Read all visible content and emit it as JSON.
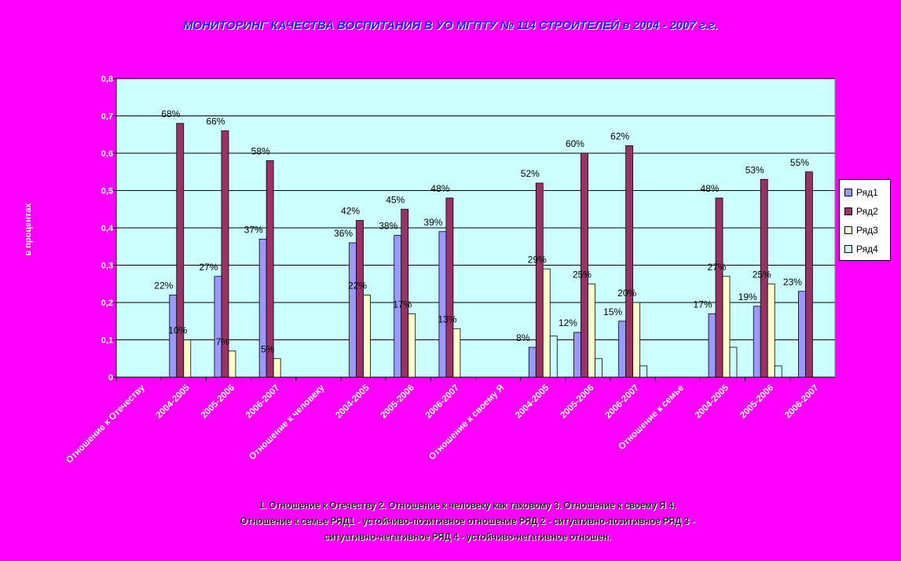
{
  "chart_data": {
    "type": "bar",
    "title": "МОНИТОРИНГ КАЧЕСТВА ВОСПИТАНИЯ В УО МГПТУ № 114 СТРОИТЕЛЕЙ в 2004 - 2007 г.г.",
    "ylabel": "в процентах",
    "ylim": [
      0,
      0.8
    ],
    "yticks": [
      "0",
      "0,1",
      "0,2",
      "0,3",
      "0,4",
      "0,5",
      "0,6",
      "0,7",
      "0,8"
    ],
    "categories": [
      "Отношение к Отечеству",
      "2004-2005",
      "2005-2006",
      "2006-2007",
      "Отношение к человеку",
      "2004-2005",
      "2005-2006",
      "2006-2007",
      "Отношение к своему Я",
      "2004-2005",
      "2005-2006",
      "2006-2007",
      "Отношение к семье",
      "2004-2005",
      "2005-2006",
      "2006-2007"
    ],
    "series": [
      {
        "name": "Ряд1",
        "color": "#9999ff",
        "values": [
          null,
          0.22,
          0.27,
          0.37,
          null,
          0.36,
          0.38,
          0.39,
          null,
          0.08,
          0.12,
          0.15,
          null,
          0.17,
          0.19,
          0.23
        ],
        "labels": [
          "",
          "22%",
          "27%",
          "37%",
          "",
          "36%",
          "38%",
          "39%",
          "",
          "8%",
          "12%",
          "15%",
          "",
          "17%",
          "19%",
          "23%"
        ]
      },
      {
        "name": "Ряд2",
        "color": "#993366",
        "values": [
          null,
          0.68,
          0.66,
          0.58,
          null,
          0.42,
          0.45,
          0.48,
          null,
          0.52,
          0.6,
          0.62,
          null,
          0.48,
          0.53,
          0.55
        ],
        "labels": [
          "",
          "68%",
          "66%",
          "58%",
          "",
          "42%",
          "45%",
          "48%",
          "",
          "52%",
          "60%",
          "62%",
          "",
          "48%",
          "53%",
          "55%"
        ]
      },
      {
        "name": "Ряд3",
        "color": "#ffffcc",
        "values": [
          null,
          0.1,
          0.07,
          0.05,
          null,
          0.22,
          0.17,
          0.13,
          null,
          0.29,
          0.25,
          0.2,
          null,
          0.27,
          0.25,
          null
        ],
        "labels": [
          "",
          "10%",
          "7%",
          "5%",
          "",
          "22%",
          "17%",
          "13%",
          "",
          "29%",
          "25%",
          "20%",
          "",
          "27%",
          "25%",
          ""
        ]
      },
      {
        "name": "Ряд4",
        "color": "#ccffff",
        "values": [
          null,
          null,
          null,
          null,
          null,
          null,
          null,
          null,
          null,
          0.11,
          0.05,
          0.03,
          null,
          0.08,
          0.03,
          null
        ],
        "labels": [
          "",
          "",
          "",
          "",
          "",
          "",
          "",
          "",
          "",
          "",
          "",
          "",
          "",
          "",
          "",
          ""
        ]
      }
    ],
    "legend_position": "right",
    "plot_background": "#ccffff",
    "page_background": "#ff00ff",
    "grid": true
  },
  "footnote": {
    "line1": "1. Отношение к Отечеству  2. Отношение к человеку как таковому  3. Отношение к своему Я    4.",
    "line2": "Отношение к семье      РЯД1 - устойчиво-позитивное отношение  РЯД 2 - ситуативно-позитивное  РЯД 3  -",
    "line3": "ситуативно-негативное  РЯД 4 -  устойчиво-негативное отношен."
  }
}
